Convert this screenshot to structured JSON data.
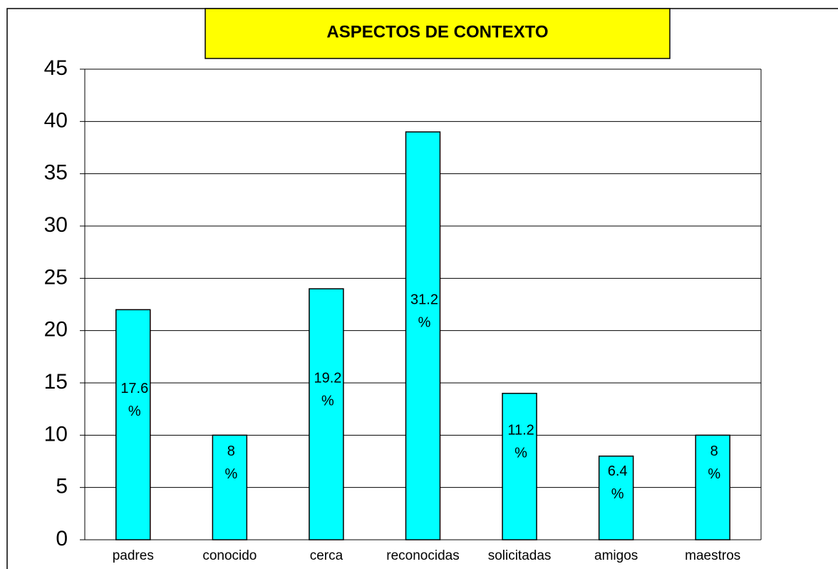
{
  "chart_data": {
    "type": "bar",
    "title": "ASPECTOS DE CONTEXTO",
    "categories": [
      "padres",
      "conocido",
      "cerca",
      "reconocidas",
      "solicitadas",
      "amigos",
      "maestros"
    ],
    "values": [
      22,
      10,
      24,
      39,
      14,
      8,
      10
    ],
    "bar_labels": [
      [
        "17.6",
        "%"
      ],
      [
        "8",
        "%"
      ],
      [
        "19.2",
        "%"
      ],
      [
        "31.2",
        "%"
      ],
      [
        "11.2",
        "%"
      ],
      [
        "6.4",
        "%"
      ],
      [
        "8",
        "%"
      ]
    ],
    "color": "#00ffff",
    "ylim": [
      0,
      45
    ],
    "yticks": [
      0,
      5,
      10,
      15,
      20,
      25,
      30,
      35,
      40,
      45
    ],
    "grid": true
  }
}
